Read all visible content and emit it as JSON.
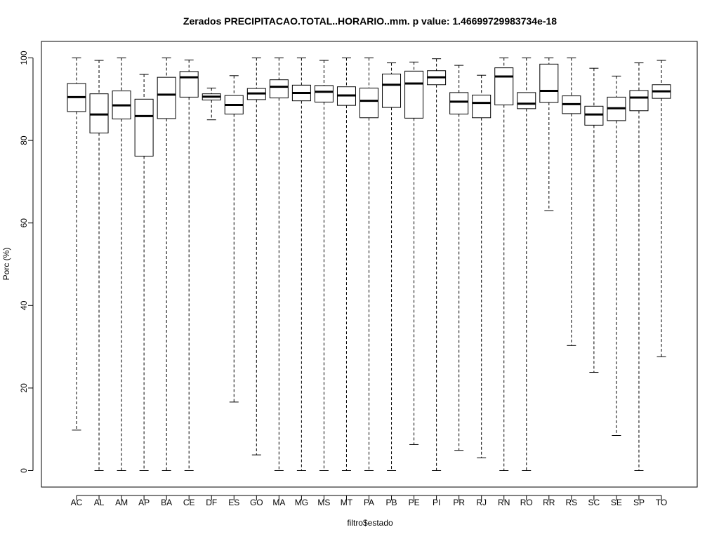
{
  "chart_data": {
    "type": "boxplot",
    "title": "Zerados PRECIPITACAO.TOTAL..HORARIO..mm. p value: 1.46699729983734e-18",
    "xlabel": "filtro$estado",
    "ylabel": "Porc (%)",
    "ylim": [
      -4,
      104
    ],
    "yticks": [
      0,
      20,
      40,
      60,
      80,
      100
    ],
    "grid": false,
    "categories": [
      "AC",
      "AL",
      "AM",
      "AP",
      "BA",
      "CE",
      "DF",
      "ES",
      "GO",
      "MA",
      "MG",
      "MS",
      "MT",
      "PA",
      "PB",
      "PE",
      "PI",
      "PR",
      "RJ",
      "RN",
      "RO",
      "RR",
      "RS",
      "SC",
      "SE",
      "SP",
      "TO"
    ],
    "boxes": [
      {
        "min": 9.8,
        "q1": 87.0,
        "median": 90.5,
        "q3": 93.8,
        "max": 100.0
      },
      {
        "min": 0.0,
        "q1": 81.8,
        "median": 86.3,
        "q3": 91.3,
        "max": 99.4
      },
      {
        "min": 0.0,
        "q1": 85.2,
        "median": 88.5,
        "q3": 92.0,
        "max": 100.0
      },
      {
        "min": 0.0,
        "q1": 76.2,
        "median": 85.9,
        "q3": 90.0,
        "max": 96.0
      },
      {
        "min": 0.0,
        "q1": 85.3,
        "median": 91.1,
        "q3": 95.3,
        "max": 100.0
      },
      {
        "min": 0.0,
        "q1": 90.5,
        "median": 95.3,
        "q3": 96.7,
        "max": 99.5
      },
      {
        "min": 85.0,
        "q1": 89.8,
        "median": 90.6,
        "q3": 91.3,
        "max": 92.7
      },
      {
        "min": 16.6,
        "q1": 86.4,
        "median": 88.6,
        "q3": 90.9,
        "max": 95.7
      },
      {
        "min": 3.8,
        "q1": 89.9,
        "median": 91.4,
        "q3": 92.6,
        "max": 100.0
      },
      {
        "min": 0.0,
        "q1": 90.3,
        "median": 93.0,
        "q3": 94.7,
        "max": 100.0
      },
      {
        "min": 0.0,
        "q1": 89.6,
        "median": 91.5,
        "q3": 93.4,
        "max": 100.0
      },
      {
        "min": 0.0,
        "q1": 89.3,
        "median": 91.8,
        "q3": 93.3,
        "max": 99.4
      },
      {
        "min": 0.0,
        "q1": 88.5,
        "median": 90.9,
        "q3": 93.0,
        "max": 100.0
      },
      {
        "min": 0.0,
        "q1": 85.5,
        "median": 89.6,
        "q3": 92.7,
        "max": 100.0
      },
      {
        "min": 0.0,
        "q1": 88.0,
        "median": 93.5,
        "q3": 96.1,
        "max": 98.8
      },
      {
        "min": 6.3,
        "q1": 85.4,
        "median": 93.8,
        "q3": 96.8,
        "max": 99.0
      },
      {
        "min": 0.0,
        "q1": 93.5,
        "median": 95.3,
        "q3": 96.9,
        "max": 99.8
      },
      {
        "min": 4.9,
        "q1": 86.4,
        "median": 89.4,
        "q3": 91.6,
        "max": 98.2
      },
      {
        "min": 3.1,
        "q1": 85.5,
        "median": 89.1,
        "q3": 91.0,
        "max": 95.8
      },
      {
        "min": 0.0,
        "q1": 88.6,
        "median": 95.5,
        "q3": 97.6,
        "max": 100.0
      },
      {
        "min": 0.0,
        "q1": 87.7,
        "median": 88.9,
        "q3": 91.6,
        "max": 100.0
      },
      {
        "min": 63.0,
        "q1": 89.2,
        "median": 92.0,
        "q3": 98.5,
        "max": 100.0
      },
      {
        "min": 30.3,
        "q1": 86.5,
        "median": 88.8,
        "q3": 90.8,
        "max": 100.0
      },
      {
        "min": 23.8,
        "q1": 83.7,
        "median": 86.3,
        "q3": 88.3,
        "max": 97.5
      },
      {
        "min": 8.5,
        "q1": 84.8,
        "median": 87.8,
        "q3": 90.5,
        "max": 95.6
      },
      {
        "min": 0.0,
        "q1": 87.2,
        "median": 90.4,
        "q3": 92.1,
        "max": 98.8
      },
      {
        "min": 27.6,
        "q1": 90.2,
        "median": 91.9,
        "q3": 93.5,
        "max": 99.4
      }
    ]
  }
}
